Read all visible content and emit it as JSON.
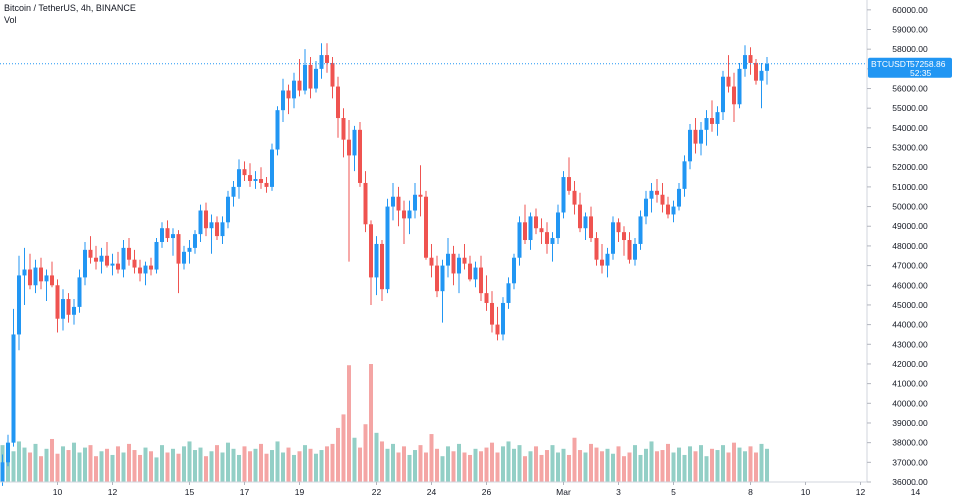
{
  "header": {
    "title": "Bitcoin / TetherUS, 4h, BINANCE",
    "volume_label": "Vol"
  },
  "price_tag": {
    "symbol": "BTCUSDT",
    "price": "57258.86",
    "countdown": "52:35"
  },
  "colors": {
    "up": "#26a69a",
    "up_body": "#2196f3",
    "down": "#ef5350",
    "vol_up": "#93cfc6",
    "vol_down": "#f4a5a4",
    "last_price_line": "#2196f3",
    "tag_bg": "#2196f3"
  },
  "chart_data": {
    "type": "candlestick",
    "symbol": "BTCUSDT",
    "exchange": "BINANCE",
    "timeframe": "4h",
    "last_price": 57258.86,
    "ylim": [
      36000,
      60500
    ],
    "y_ticks": [
      "60000.00",
      "59000.00",
      "58000.00",
      "57000.00",
      "56000.00",
      "55000.00",
      "54000.00",
      "53000.00",
      "52000.00",
      "51000.00",
      "50000.00",
      "49000.00",
      "48000.00",
      "47000.00",
      "46000.00",
      "45000.00",
      "44000.00",
      "43000.00",
      "42000.00",
      "41000.00",
      "40000.00",
      "39000.00",
      "38000.00",
      "37000.00",
      "36000.00"
    ],
    "x_ticks": [
      "10",
      "12",
      "15",
      "17",
      "19",
      "22",
      "24",
      "26",
      "Mar",
      "3",
      "5",
      "8",
      "10",
      "12",
      "14"
    ],
    "x_tick_index": [
      10,
      20,
      34,
      44,
      54,
      68,
      78,
      88,
      102,
      112,
      122,
      136,
      146,
      156,
      166
    ],
    "candles": [
      [
        36000,
        37400,
        35800,
        37000
      ],
      [
        37000,
        38400,
        36800,
        38000
      ],
      [
        38000,
        44800,
        37800,
        43500
      ],
      [
        43500,
        47500,
        42700,
        46500
      ],
      [
        46500,
        47900,
        45000,
        46800
      ],
      [
        46800,
        47600,
        45800,
        46000
      ],
      [
        46000,
        47300,
        45600,
        46900
      ],
      [
        46900,
        47400,
        45800,
        46200
      ],
      [
        46200,
        46800,
        45200,
        46500
      ],
      [
        46500,
        47200,
        45900,
        46000
      ],
      [
        46000,
        46300,
        43600,
        44300
      ],
      [
        44300,
        45800,
        43700,
        45300
      ],
      [
        45300,
        45600,
        44100,
        44500
      ],
      [
        44500,
        45300,
        44000,
        44900
      ],
      [
        44900,
        46800,
        44600,
        46400
      ],
      [
        46400,
        48200,
        46000,
        47800
      ],
      [
        47800,
        48500,
        47100,
        47400
      ],
      [
        47400,
        48000,
        46800,
        47200
      ],
      [
        47200,
        47900,
        46600,
        47500
      ],
      [
        47500,
        48200,
        46900,
        47000
      ],
      [
        47000,
        47600,
        46500,
        47100
      ],
      [
        47100,
        47700,
        46600,
        46800
      ],
      [
        46800,
        48300,
        46400,
        47900
      ],
      [
        47900,
        48400,
        47000,
        47300
      ],
      [
        47300,
        47800,
        46600,
        46900
      ],
      [
        46900,
        47300,
        46200,
        46600
      ],
      [
        46600,
        47200,
        46000,
        47000
      ],
      [
        47000,
        47400,
        46500,
        46800
      ],
      [
        46800,
        48400,
        46600,
        48200
      ],
      [
        48200,
        49200,
        47900,
        48900
      ],
      [
        48900,
        49300,
        48200,
        48400
      ],
      [
        48400,
        48900,
        47500,
        48600
      ],
      [
        48600,
        48800,
        45600,
        47100
      ],
      [
        47100,
        48000,
        46800,
        47700
      ],
      [
        47700,
        48300,
        47100,
        47900
      ],
      [
        47900,
        48800,
        47600,
        48600
      ],
      [
        48600,
        50100,
        48200,
        49800
      ],
      [
        49800,
        50200,
        48500,
        48900
      ],
      [
        48900,
        49600,
        47600,
        49200
      ],
      [
        49200,
        49500,
        48300,
        48500
      ],
      [
        48500,
        49500,
        48100,
        49200
      ],
      [
        49200,
        50800,
        48900,
        50500
      ],
      [
        50500,
        51300,
        50000,
        51000
      ],
      [
        51000,
        52400,
        50400,
        51900
      ],
      [
        51900,
        52300,
        51300,
        51600
      ],
      [
        51600,
        52200,
        51000,
        51300
      ],
      [
        51300,
        51800,
        50900,
        51400
      ],
      [
        51400,
        52000,
        50900,
        51200
      ],
      [
        51200,
        51500,
        50700,
        51000
      ],
      [
        51000,
        53200,
        50800,
        52900
      ],
      [
        52900,
        55100,
        52600,
        54900
      ],
      [
        54900,
        56500,
        54300,
        55900
      ],
      [
        55900,
        56200,
        54700,
        55500
      ],
      [
        55500,
        56800,
        55000,
        56400
      ],
      [
        56400,
        57500,
        55600,
        55900
      ],
      [
        55900,
        58000,
        55700,
        57200
      ],
      [
        57200,
        57600,
        55500,
        56000
      ],
      [
        56000,
        57400,
        55800,
        57000
      ],
      [
        57000,
        58300,
        56500,
        57700
      ],
      [
        57700,
        58300,
        56800,
        57300
      ],
      [
        57300,
        57600,
        55500,
        56100
      ],
      [
        56100,
        56600,
        53500,
        54500
      ],
      [
        54500,
        55000,
        52500,
        53400
      ],
      [
        53400,
        54400,
        47200,
        52600
      ],
      [
        52600,
        54100,
        51800,
        53900
      ],
      [
        53900,
        54300,
        51000,
        51200
      ],
      [
        51200,
        51800,
        48700,
        49100
      ],
      [
        49100,
        49300,
        45000,
        46400
      ],
      [
        46400,
        48500,
        45500,
        48100
      ],
      [
        48100,
        48300,
        45200,
        45800
      ],
      [
        45800,
        50400,
        45600,
        50000
      ],
      [
        50000,
        51200,
        49300,
        50500
      ],
      [
        50500,
        51000,
        49000,
        49800
      ],
      [
        49800,
        50300,
        48100,
        49400
      ],
      [
        49400,
        50300,
        48600,
        49800
      ],
      [
        49800,
        51200,
        49400,
        50600
      ],
      [
        50600,
        52100,
        49500,
        50500
      ],
      [
        50500,
        50800,
        47300,
        47400
      ],
      [
        47400,
        48100,
        46400,
        47000
      ],
      [
        47000,
        47500,
        45400,
        45700
      ],
      [
        45700,
        47300,
        44100,
        47000
      ],
      [
        47000,
        48400,
        46400,
        47600
      ],
      [
        47600,
        48000,
        46000,
        46600
      ],
      [
        46600,
        47600,
        45600,
        47400
      ],
      [
        47400,
        48100,
        46800,
        47100
      ],
      [
        47100,
        47500,
        46200,
        46300
      ],
      [
        46300,
        47200,
        45900,
        46900
      ],
      [
        46900,
        47500,
        45200,
        45600
      ],
      [
        45600,
        46500,
        44700,
        45100
      ],
      [
        45100,
        45700,
        43600,
        44000
      ],
      [
        44000,
        44900,
        43200,
        43500
      ],
      [
        43500,
        45400,
        43200,
        45100
      ],
      [
        45100,
        46400,
        44800,
        46100
      ],
      [
        46100,
        47600,
        45800,
        47400
      ],
      [
        47400,
        49500,
        47000,
        49200
      ],
      [
        49200,
        50100,
        48100,
        48300
      ],
      [
        48300,
        49700,
        47800,
        49500
      ],
      [
        49500,
        49900,
        48600,
        48900
      ],
      [
        48900,
        49400,
        48100,
        48700
      ],
      [
        48700,
        49200,
        47600,
        48100
      ],
      [
        48100,
        48700,
        47200,
        48400
      ],
      [
        48400,
        50100,
        48100,
        49700
      ],
      [
        49700,
        51800,
        49400,
        51500
      ],
      [
        51500,
        52500,
        50600,
        50800
      ],
      [
        50800,
        51300,
        49600,
        50100
      ],
      [
        50100,
        50700,
        48700,
        48900
      ],
      [
        48900,
        49700,
        48300,
        49500
      ],
      [
        49500,
        50000,
        48200,
        48400
      ],
      [
        48400,
        48700,
        47000,
        47300
      ],
      [
        47300,
        48100,
        46600,
        47000
      ],
      [
        47000,
        47900,
        46400,
        47600
      ],
      [
        47600,
        49500,
        47300,
        49200
      ],
      [
        49200,
        49400,
        48200,
        48700
      ],
      [
        48700,
        49000,
        47500,
        48300
      ],
      [
        48300,
        48700,
        47100,
        47300
      ],
      [
        47300,
        48400,
        47000,
        48100
      ],
      [
        48100,
        49800,
        47800,
        49500
      ],
      [
        49500,
        50800,
        49100,
        50400
      ],
      [
        50400,
        51200,
        49700,
        50800
      ],
      [
        50800,
        51400,
        50200,
        50600
      ],
      [
        50600,
        51200,
        49700,
        50100
      ],
      [
        50100,
        50500,
        49400,
        49600
      ],
      [
        49600,
        50300,
        49200,
        50000
      ],
      [
        50000,
        51200,
        49800,
        50900
      ],
      [
        50900,
        52600,
        50500,
        52300
      ],
      [
        52300,
        54200,
        51900,
        53900
      ],
      [
        53900,
        54500,
        52700,
        53200
      ],
      [
        53200,
        54300,
        52600,
        53900
      ],
      [
        53900,
        54900,
        53100,
        54500
      ],
      [
        54500,
        55400,
        53800,
        54200
      ],
      [
        54200,
        55100,
        53600,
        54800
      ],
      [
        54800,
        56900,
        54400,
        56600
      ],
      [
        56600,
        57700,
        55800,
        56100
      ],
      [
        56100,
        56800,
        54300,
        55200
      ],
      [
        55200,
        57300,
        55000,
        57000
      ],
      [
        57000,
        58200,
        56600,
        57700
      ],
      [
        57700,
        58100,
        56700,
        57300
      ],
      [
        57300,
        57500,
        56200,
        56400
      ],
      [
        56400,
        57300,
        55000,
        56900
      ],
      [
        56900,
        57600,
        56200,
        57258.86
      ]
    ],
    "volumes": [
      30,
      22,
      25,
      33,
      28,
      24,
      31,
      21,
      27,
      35,
      23,
      29,
      26,
      32,
      24,
      28,
      30,
      21,
      25,
      27,
      22,
      29,
      24,
      31,
      26,
      22,
      28,
      25,
      20,
      30,
      24,
      27,
      23,
      29,
      33,
      26,
      28,
      21,
      25,
      30,
      24,
      32,
      27,
      22,
      29,
      25,
      27,
      31,
      23,
      26,
      33,
      24,
      28,
      22,
      25,
      30,
      27,
      23,
      26,
      29,
      31,
      44,
      55,
      95,
      36,
      28,
      47,
      96,
      40,
      33,
      27,
      31,
      24,
      29,
      22,
      26,
      30,
      24,
      39,
      27,
      21,
      29,
      25,
      31,
      24,
      22,
      27,
      25,
      28,
      32,
      24,
      29,
      33,
      27,
      30,
      21,
      25,
      29,
      22,
      26,
      30,
      24,
      27,
      22,
      36,
      26,
      24,
      31,
      28,
      25,
      27,
      23,
      29,
      21,
      24,
      30,
      22,
      27,
      33,
      25,
      26,
      31,
      24,
      28,
      22,
      29,
      25,
      30,
      21,
      27,
      26,
      30,
      24,
      32,
      28,
      25,
      29,
      24,
      31,
      27
    ]
  }
}
